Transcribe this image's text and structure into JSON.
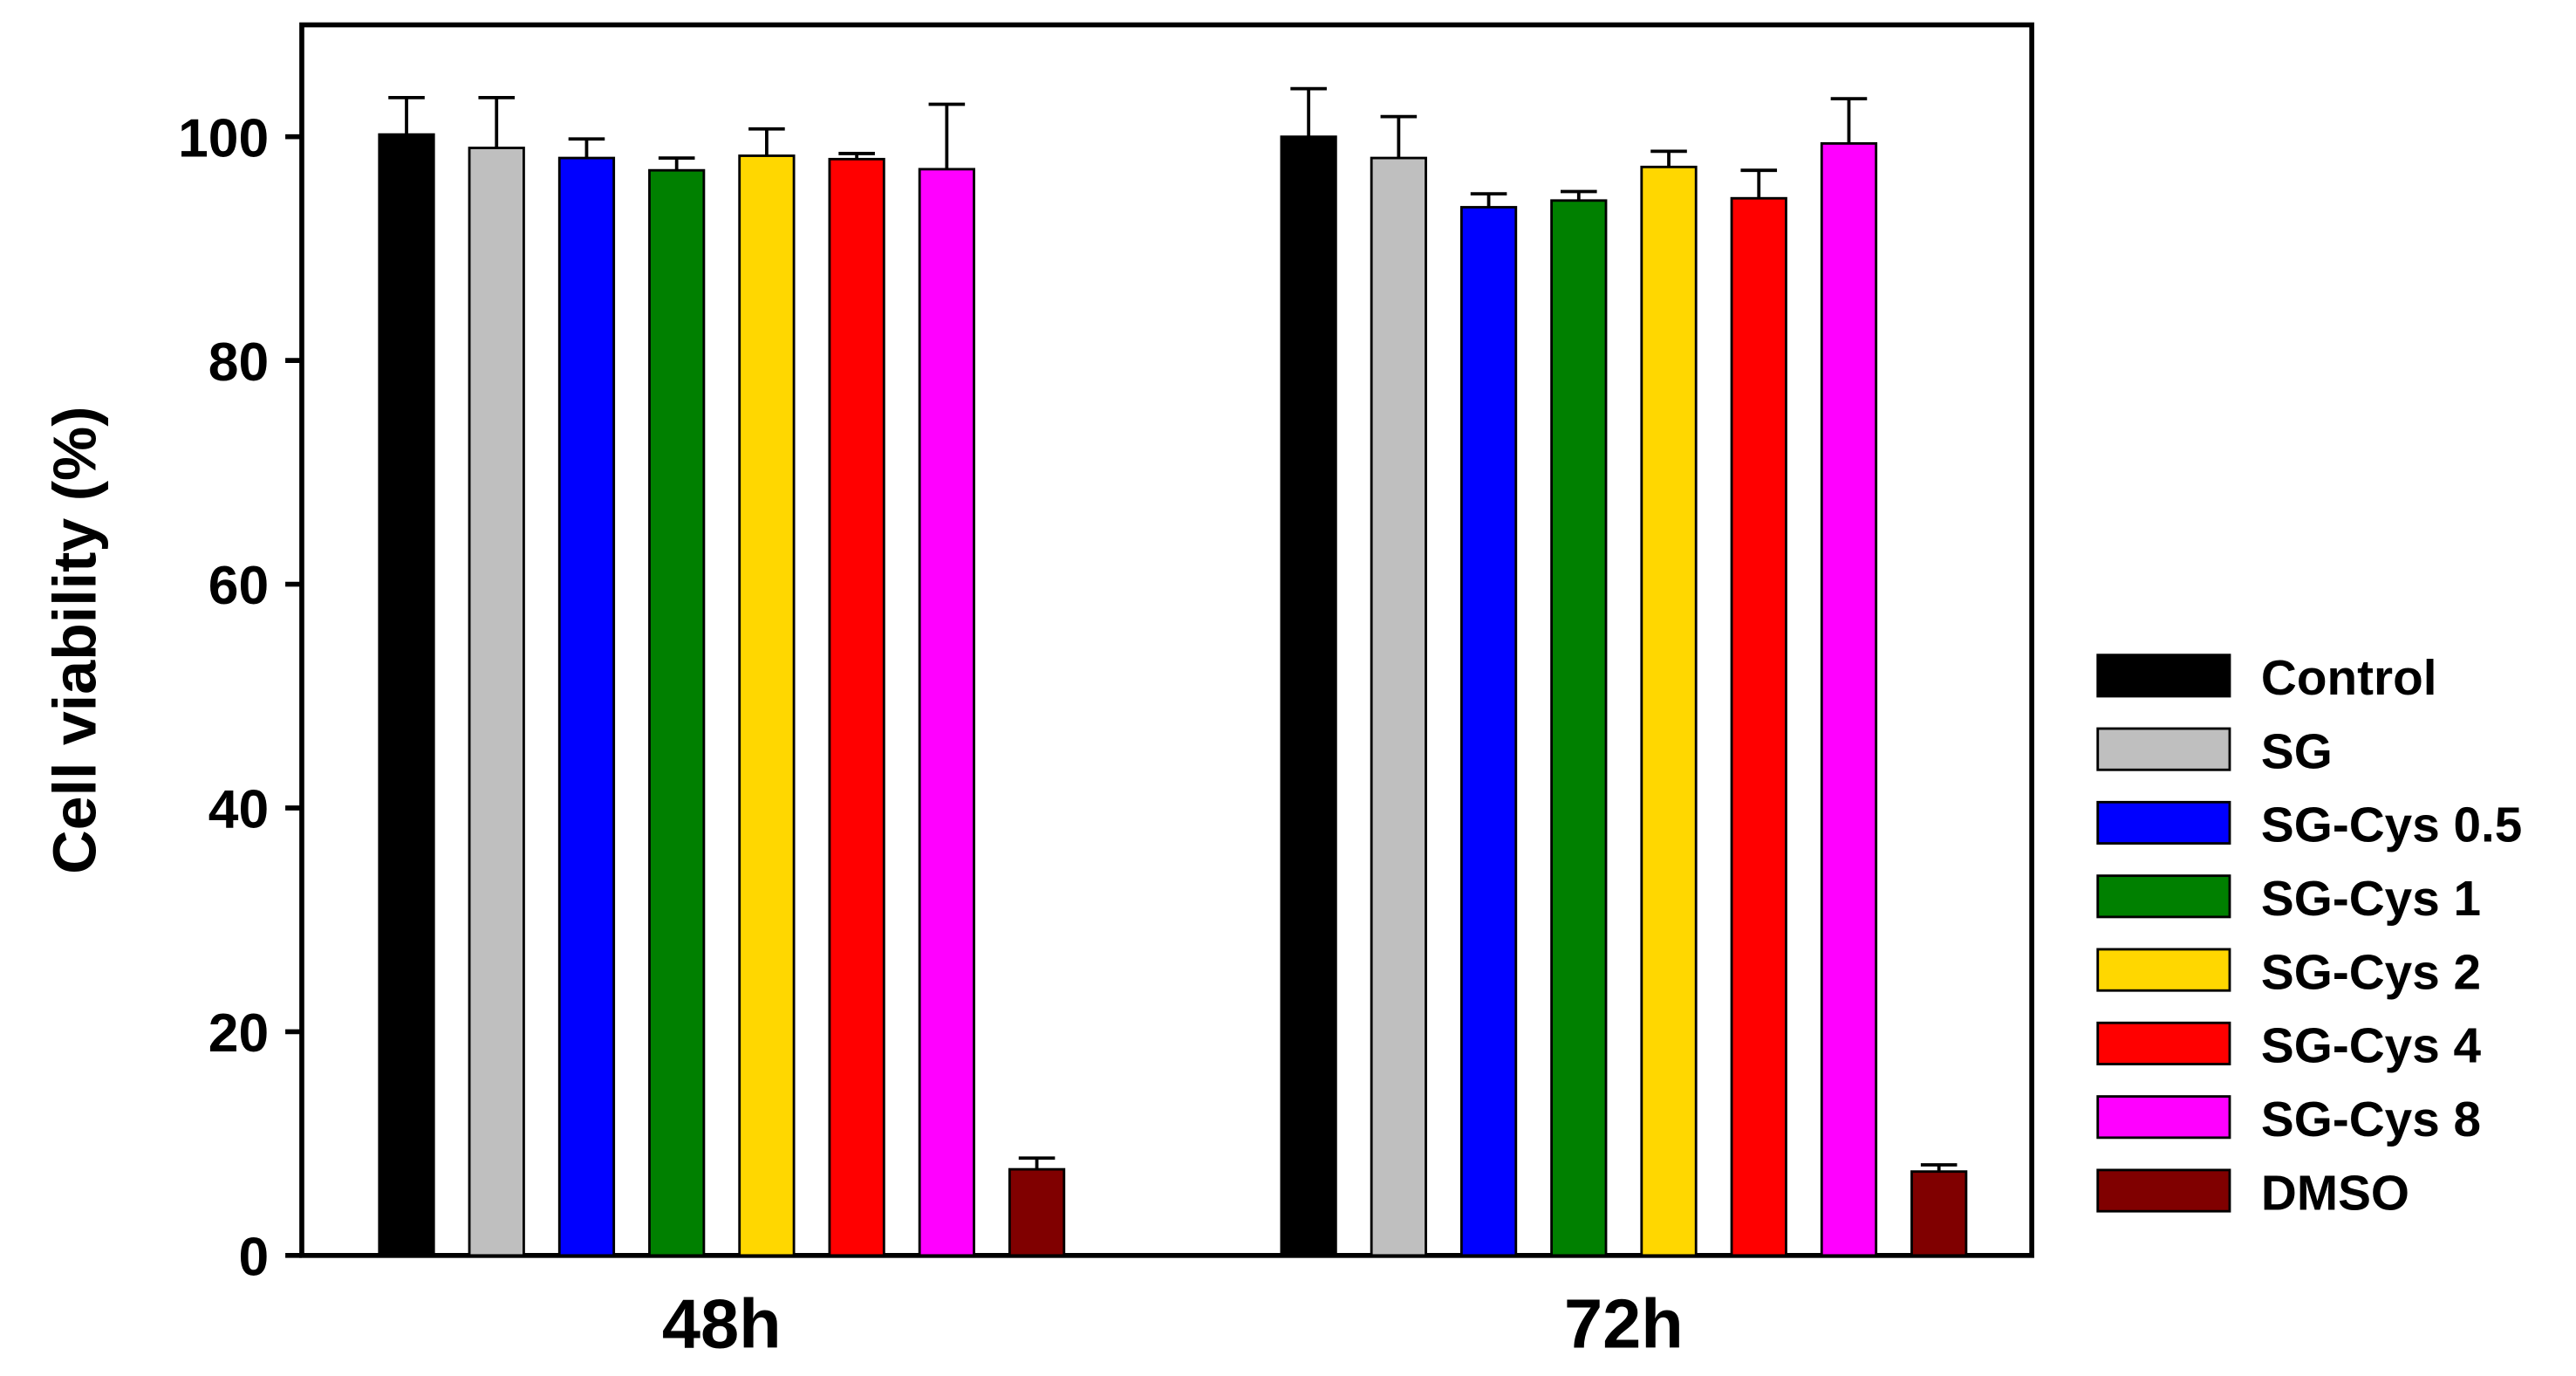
{
  "chart_data": {
    "type": "bar",
    "title": "",
    "xlabel": "",
    "ylabel": "Cell viability (%)",
    "ylim": [
      0,
      110
    ],
    "yticks": [
      0,
      20,
      40,
      60,
      80,
      100
    ],
    "categories": [
      "48h",
      "72h"
    ],
    "grid": false,
    "legend_position": "right",
    "series": [
      {
        "name": "Control",
        "color": "#000000",
        "values": [
          100.2,
          100.0
        ],
        "errors": [
          3.3,
          4.3
        ]
      },
      {
        "name": "SG",
        "color": "#bfbfbf",
        "values": [
          99.0,
          98.1
        ],
        "errors": [
          4.5,
          3.7
        ]
      },
      {
        "name": "SG-Cys 0.5",
        "color": "#0000ff",
        "values": [
          98.1,
          93.7
        ],
        "errors": [
          1.7,
          1.2
        ]
      },
      {
        "name": "SG-Cys 1",
        "color": "#008000",
        "values": [
          97.0,
          94.3
        ],
        "errors": [
          1.1,
          0.8
        ]
      },
      {
        "name": "SG-Cys 2",
        "color": "#ffd700",
        "values": [
          98.3,
          97.3
        ],
        "errors": [
          2.4,
          1.4
        ]
      },
      {
        "name": "SG-Cys 4",
        "color": "#ff0000",
        "values": [
          98.0,
          94.5
        ],
        "errors": [
          0.5,
          2.5
        ]
      },
      {
        "name": "SG-Cys 8",
        "color": "#ff00ff",
        "values": [
          97.1,
          99.4
        ],
        "errors": [
          5.8,
          4.0
        ]
      },
      {
        "name": "DMSO",
        "color": "#800000",
        "values": [
          7.7,
          7.5
        ],
        "errors": [
          1.0,
          0.6
        ]
      }
    ]
  }
}
